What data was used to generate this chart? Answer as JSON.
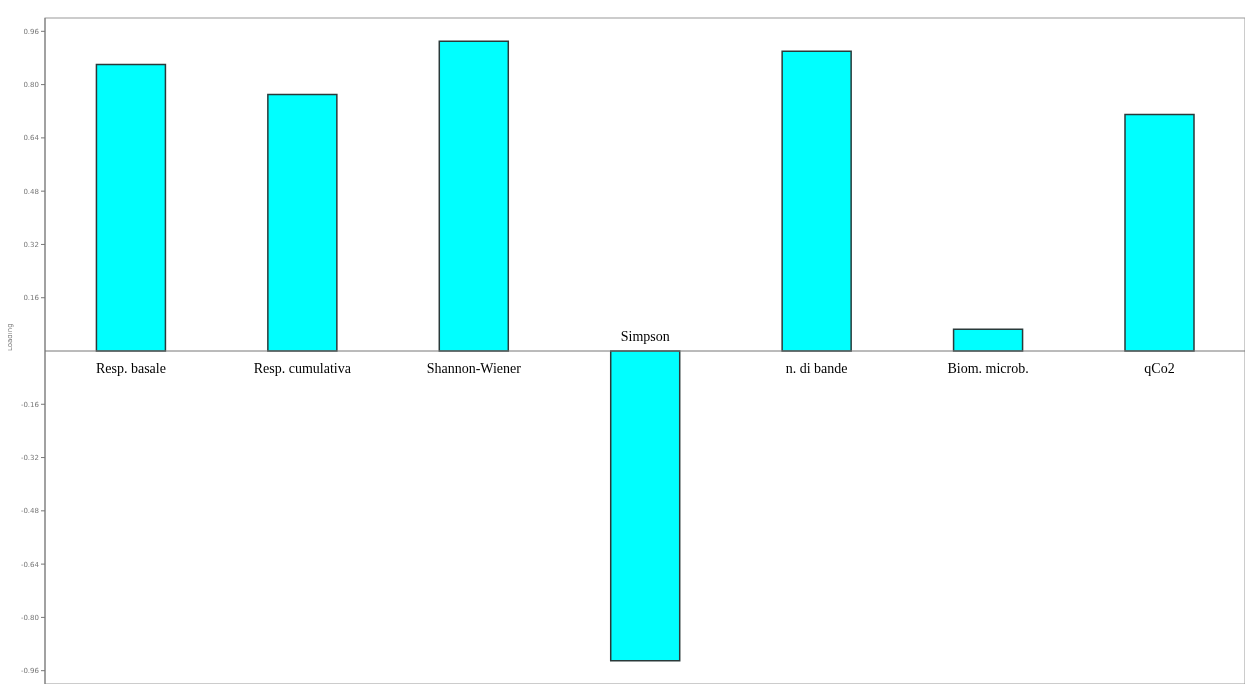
{
  "chart_data": {
    "type": "bar",
    "ylabel": "Loading",
    "categories": [
      "Resp. basale",
      "Resp. cumulativa",
      "Shannon-Wiener",
      "Simpson",
      "n. di bande",
      "Biom. microb.",
      "qCo2"
    ],
    "values": [
      0.86,
      0.77,
      0.93,
      -0.93,
      0.9,
      0.065,
      0.71
    ],
    "color": "#00ffff",
    "ylim": [
      -1,
      1
    ],
    "yticks": [
      {
        "value": -0.96,
        "label": "-0.96"
      },
      {
        "value": -0.8,
        "label": "-0.80"
      },
      {
        "value": -0.64,
        "label": "-0.64"
      },
      {
        "value": -0.48,
        "label": "-0.48"
      },
      {
        "value": -0.32,
        "label": "-0.32"
      },
      {
        "value": -0.16,
        "label": "-0.16"
      },
      {
        "value": 0.16,
        "label": "0.16"
      },
      {
        "value": 0.32,
        "label": "0.32"
      },
      {
        "value": 0.48,
        "label": "0.48"
      },
      {
        "value": 0.64,
        "label": "0.64"
      },
      {
        "value": 0.8,
        "label": "0.80"
      },
      {
        "value": 0.96,
        "label": "0.96"
      }
    ],
    "grid": false
  }
}
